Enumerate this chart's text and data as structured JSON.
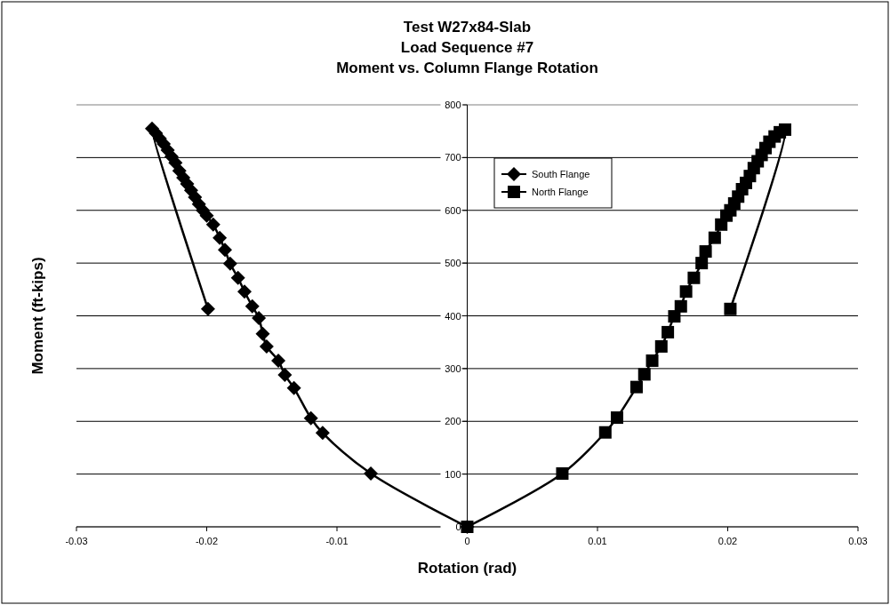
{
  "chart_data": {
    "type": "line",
    "title": "Test W27x84-Slab\nLoad Sequence #7\nMoment vs. Column Flange Rotation",
    "xlabel": "Rotation (rad)",
    "ylabel": "Moment (ft-kips)",
    "xlim": [
      -0.03,
      0.03
    ],
    "xticks": [
      -0.03,
      -0.02,
      -0.01,
      0,
      0.01,
      0.02,
      0.03
    ],
    "ylim": [
      0,
      800
    ],
    "yticks": [
      0,
      100,
      200,
      300,
      400,
      500,
      600,
      700,
      800
    ],
    "grid": "y",
    "legend": "top",
    "line_style": "solid",
    "series": [
      {
        "name": "South Flange",
        "color": "#000000",
        "marker": "diamond",
        "x": [
          0,
          -0.0074,
          -0.0111,
          -0.012,
          -0.0133,
          -0.014,
          -0.0145,
          -0.0154,
          -0.0157,
          -0.016,
          -0.0165,
          -0.0171,
          -0.0176,
          -0.0182,
          -0.0186,
          -0.019,
          -0.0195,
          -0.02,
          -0.0203,
          -0.0206,
          -0.0209,
          -0.0212,
          -0.0215,
          -0.0218,
          -0.0221,
          -0.0224,
          -0.0227,
          -0.023,
          -0.0233,
          -0.0236,
          -0.0239,
          -0.0242,
          -0.0199
        ],
        "values": [
          0,
          101,
          178,
          206,
          263,
          288,
          315,
          342,
          366,
          396,
          418,
          446,
          472,
          499,
          525,
          548,
          573,
          590,
          600,
          612,
          625,
          638,
          650,
          662,
          675,
          690,
          702,
          714,
          726,
          736,
          746,
          755,
          413
        ]
      },
      {
        "name": "North Flange",
        "color": "#000000",
        "marker": "square",
        "x": [
          0,
          0.0073,
          0.0106,
          0.0115,
          0.013,
          0.0136,
          0.0142,
          0.0149,
          0.0154,
          0.0159,
          0.0164,
          0.0168,
          0.0174,
          0.018,
          0.0183,
          0.019,
          0.0195,
          0.0199,
          0.0202,
          0.0205,
          0.0208,
          0.0211,
          0.0214,
          0.0217,
          0.022,
          0.0223,
          0.0226,
          0.0229,
          0.0232,
          0.0236,
          0.024,
          0.0244,
          0.0202
        ],
        "values": [
          0,
          101,
          179,
          207,
          265,
          289,
          315,
          342,
          369,
          399,
          418,
          446,
          472,
          500,
          522,
          548,
          573,
          590,
          600,
          613,
          626,
          640,
          652,
          665,
          680,
          693,
          705,
          718,
          730,
          740,
          748,
          753,
          413
        ]
      }
    ]
  }
}
